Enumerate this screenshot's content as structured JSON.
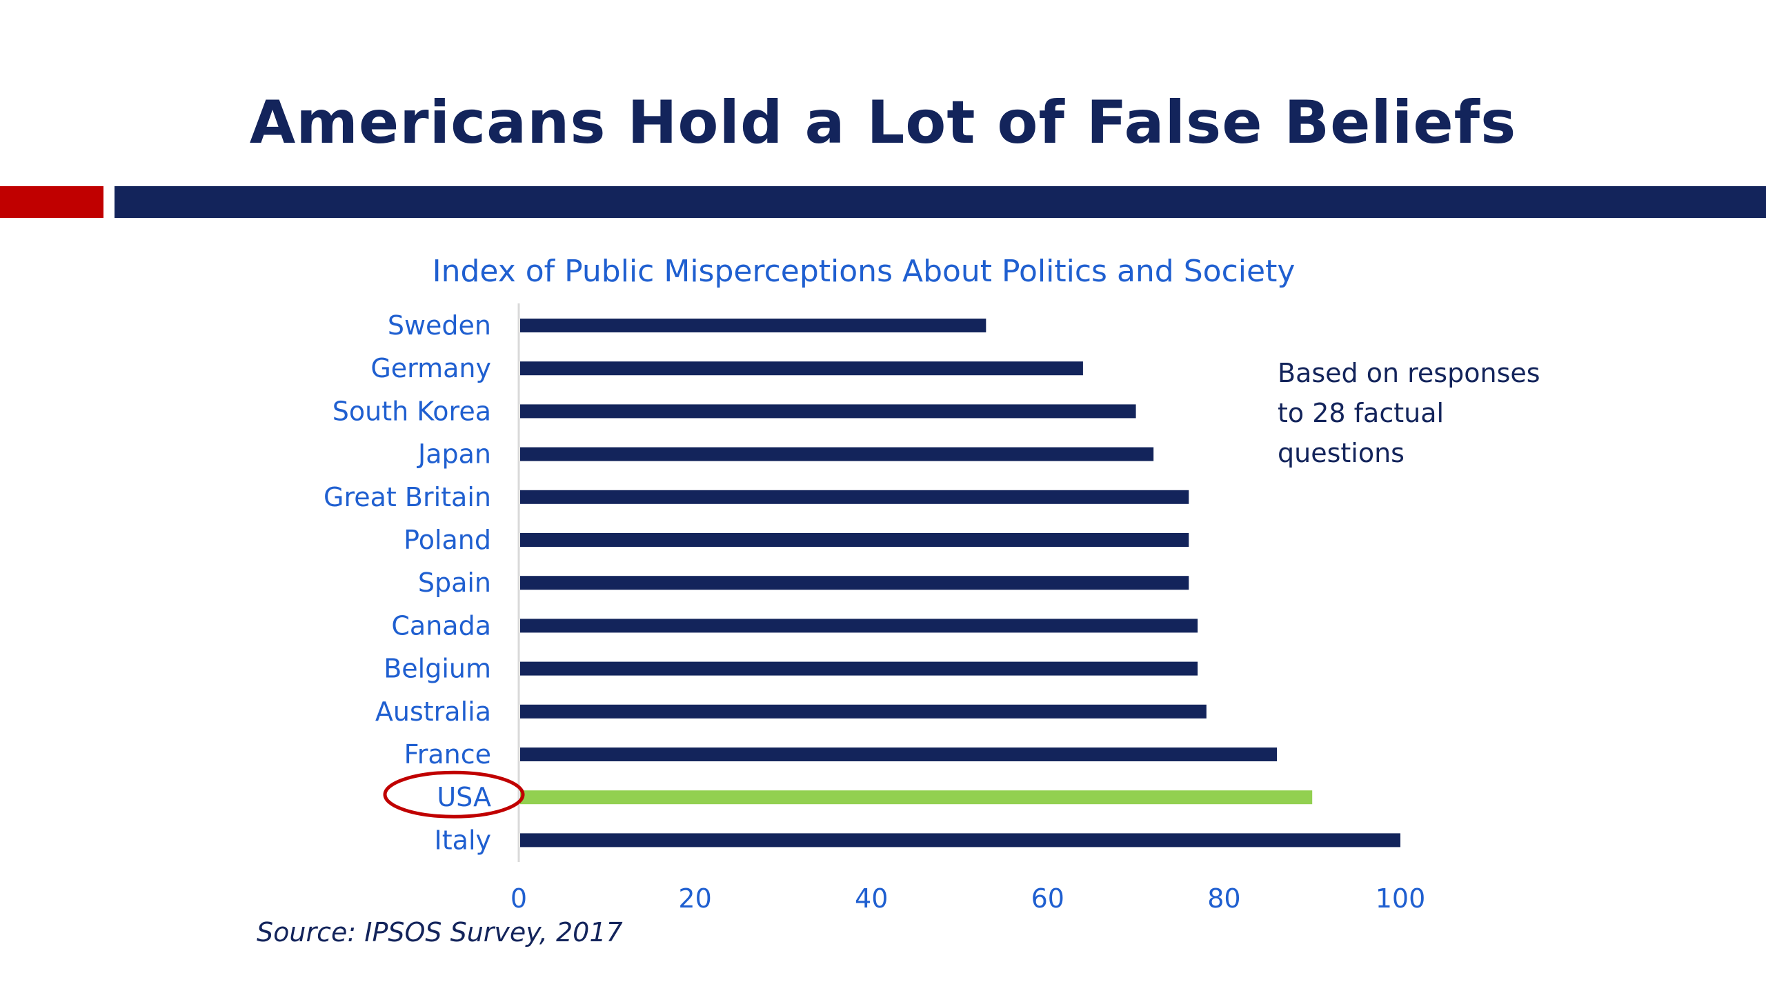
{
  "slide": {
    "title": "Americans Hold a Lot of False Beliefs",
    "note": "Based on responses to 28 factual questions",
    "source": "Source: IPSOS Survey, 2017"
  },
  "colors": {
    "navy": "#13245b",
    "accent_red": "#c00000",
    "highlight_green": "#92d050",
    "label_blue": "#1f5fd0"
  },
  "chart_data": {
    "type": "bar",
    "orientation": "horizontal",
    "title": "Index of Public Misperceptions About Politics and Society",
    "categories": [
      "Sweden",
      "Germany",
      "South Korea",
      "Japan",
      "Great Britain",
      "Poland",
      "Spain",
      "Canada",
      "Belgium",
      "Australia",
      "France",
      "USA",
      "Italy"
    ],
    "values": [
      53,
      64,
      70,
      72,
      76,
      76,
      76,
      77,
      77,
      78,
      86,
      90,
      100
    ],
    "highlight": "USA",
    "xlim": [
      0,
      100
    ],
    "xticks": [
      0,
      20,
      40,
      60,
      80,
      100
    ],
    "grid": false,
    "legend": "none"
  }
}
